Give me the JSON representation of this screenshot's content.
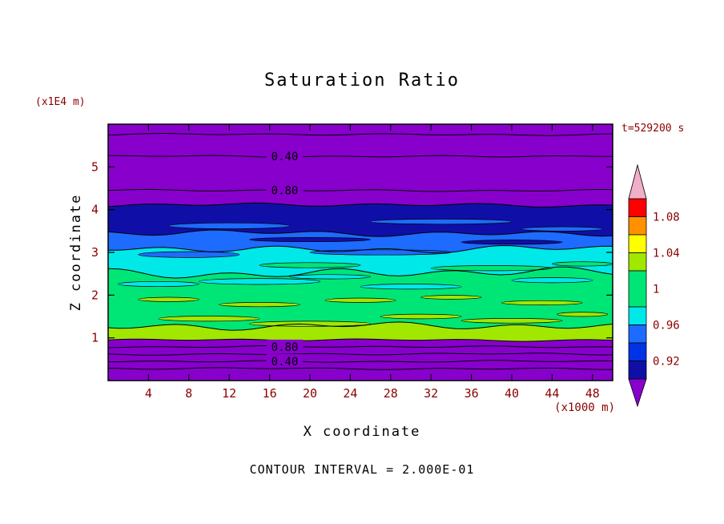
{
  "colors": {
    "background": "#ffffff",
    "accent_text": "#8b0000",
    "line_color": "#000000",
    "undersaturated_purple": "#8800cc",
    "over_pink": "#f0aec8"
  },
  "chart_data": {
    "type": "filled-contour",
    "title": "Saturation Ratio",
    "xlabel": "X coordinate",
    "ylabel": "Z coordinate",
    "x_units": "(x1000 m)",
    "y_units": "(x1E4 m)",
    "time": "t=529200 s",
    "contour_interval": 0.2,
    "contour_interval_label": "CONTOUR INTERVAL = 2.000E-01",
    "xlim": [
      0,
      50
    ],
    "ylim": [
      0,
      6
    ],
    "x_ticks": [
      4,
      8,
      12,
      16,
      20,
      24,
      28,
      32,
      36,
      40,
      44,
      48
    ],
    "y_ticks": [
      1,
      2,
      3,
      4,
      5
    ],
    "grid": false,
    "legend_position": "right-colorbar",
    "contour_label_bg": "#8800cc",
    "boundaries": [
      {
        "z": 6.0,
        "amp": 0,
        "seed": 0
      },
      {
        "z": 4.11,
        "amp": 0.05,
        "seed": 1
      },
      {
        "z": 3.45,
        "amp": 0.08,
        "seed": 2
      },
      {
        "z": 3.08,
        "amp": 0.1,
        "seed": 3
      },
      {
        "z": 2.52,
        "amp": 0.13,
        "seed": 4
      },
      {
        "z": 1.27,
        "amp": 0.1,
        "seed": 5
      },
      {
        "z": 0.95,
        "amp": 0.03,
        "seed": 6
      },
      {
        "z": 0.0,
        "amp": 0,
        "seed": 0
      }
    ],
    "bands": [
      {
        "name": "undersaturated-top",
        "color": "#8800cc",
        "range": [
          0.0,
          0.9
        ]
      },
      {
        "name": "dark-blue",
        "color": "#0f0fa8",
        "range": [
          0.9,
          0.92
        ]
      },
      {
        "name": "blue",
        "color": "#1e6bff",
        "range": [
          0.92,
          0.96
        ]
      },
      {
        "name": "cyan",
        "color": "#00e8e8",
        "range": [
          0.96,
          0.98
        ]
      },
      {
        "name": "green",
        "color": "#00e676",
        "range": [
          0.98,
          1.02
        ]
      },
      {
        "name": "yellow-green",
        "color": "#a2e700",
        "range": [
          1.02,
          1.04
        ]
      },
      {
        "name": "undersaturated-bottom",
        "color": "#8800cc",
        "range": [
          0.0,
          0.9
        ]
      }
    ],
    "contour_lines": [
      {
        "value": 0.2,
        "z": 5.76
      },
      {
        "value": 0.4,
        "z": 5.25,
        "label": "0.40",
        "label_x": 17.5
      },
      {
        "value": 0.8,
        "z": 4.45,
        "label": "0.80",
        "label_x": 17.5
      },
      {
        "value": 0.8,
        "z": 0.79,
        "label": "0.80",
        "label_x": 17.5
      },
      {
        "value": 0.6,
        "z": 0.62
      },
      {
        "value": 0.4,
        "z": 0.45,
        "label": "0.40",
        "label_x": 17.5
      },
      {
        "value": 0.2,
        "z": 0.28
      }
    ],
    "streaks": [
      {
        "x": 12,
        "z": 3.62,
        "rx": 6,
        "rz": 0.07,
        "color": "#1e6bff"
      },
      {
        "x": 33,
        "z": 3.72,
        "rx": 7,
        "rz": 0.06,
        "color": "#1e6bff"
      },
      {
        "x": 45,
        "z": 3.55,
        "rx": 4,
        "rz": 0.05,
        "color": "#1e6bff"
      },
      {
        "x": 20,
        "z": 3.3,
        "rx": 6,
        "rz": 0.05,
        "color": "#0f0fa8"
      },
      {
        "x": 40,
        "z": 3.24,
        "rx": 5,
        "rz": 0.05,
        "color": "#0f0fa8"
      },
      {
        "x": 8,
        "z": 2.95,
        "rx": 5,
        "rz": 0.07,
        "color": "#1e6bff"
      },
      {
        "x": 27,
        "z": 3.0,
        "rx": 7,
        "rz": 0.06,
        "color": "#1e6bff"
      },
      {
        "x": 20,
        "z": 2.7,
        "rx": 5,
        "rz": 0.06,
        "color": "#00e676"
      },
      {
        "x": 38,
        "z": 2.63,
        "rx": 6,
        "rz": 0.06,
        "color": "#00e676"
      },
      {
        "x": 47,
        "z": 2.73,
        "rx": 3,
        "rz": 0.05,
        "color": "#00e676"
      },
      {
        "x": 5,
        "z": 2.26,
        "rx": 4,
        "rz": 0.06,
        "color": "#00e8e8"
      },
      {
        "x": 15,
        "z": 2.32,
        "rx": 6,
        "rz": 0.07,
        "color": "#00e8e8"
      },
      {
        "x": 22,
        "z": 2.43,
        "rx": 4,
        "rz": 0.05,
        "color": "#00e8e8"
      },
      {
        "x": 30,
        "z": 2.2,
        "rx": 5,
        "rz": 0.06,
        "color": "#00e8e8"
      },
      {
        "x": 44,
        "z": 2.35,
        "rx": 4,
        "rz": 0.06,
        "color": "#00e8e8"
      },
      {
        "x": 6,
        "z": 1.9,
        "rx": 3,
        "rz": 0.05,
        "color": "#a2e700"
      },
      {
        "x": 15,
        "z": 1.78,
        "rx": 4,
        "rz": 0.05,
        "color": "#a2e700"
      },
      {
        "x": 25,
        "z": 1.88,
        "rx": 3.5,
        "rz": 0.05,
        "color": "#a2e700"
      },
      {
        "x": 34,
        "z": 1.95,
        "rx": 3,
        "rz": 0.045,
        "color": "#a2e700"
      },
      {
        "x": 43,
        "z": 1.82,
        "rx": 4,
        "rz": 0.05,
        "color": "#a2e700"
      },
      {
        "x": 10,
        "z": 1.45,
        "rx": 5,
        "rz": 0.06,
        "color": "#a2e700"
      },
      {
        "x": 20,
        "z": 1.33,
        "rx": 6,
        "rz": 0.06,
        "color": "#a2e700"
      },
      {
        "x": 31,
        "z": 1.5,
        "rx": 4,
        "rz": 0.055,
        "color": "#a2e700"
      },
      {
        "x": 40,
        "z": 1.4,
        "rx": 5,
        "rz": 0.055,
        "color": "#a2e700"
      },
      {
        "x": 47,
        "z": 1.55,
        "rx": 2.5,
        "rz": 0.05,
        "color": "#a2e700"
      }
    ],
    "colorbar": {
      "vmin": 0.9,
      "vmax": 1.1,
      "labels": [
        {
          "value": 1.08,
          "text": "1.08"
        },
        {
          "value": 1.04,
          "text": "1.04"
        },
        {
          "value": 1.0,
          "text": "1"
        },
        {
          "value": 0.96,
          "text": "0.96"
        },
        {
          "value": 0.92,
          "text": "0.92"
        }
      ],
      "segments": [
        {
          "v0": 1.08,
          "v1": 1.1,
          "color": "#ff0000"
        },
        {
          "v0": 1.06,
          "v1": 1.08,
          "color": "#ff9100"
        },
        {
          "v0": 1.04,
          "v1": 1.06,
          "color": "#ffff00"
        },
        {
          "v0": 1.02,
          "v1": 1.04,
          "color": "#a2e700"
        },
        {
          "v0": 0.98,
          "v1": 1.02,
          "color": "#00e676"
        },
        {
          "v0": 0.96,
          "v1": 0.98,
          "color": "#00e8e8"
        },
        {
          "v0": 0.94,
          "v1": 0.96,
          "color": "#1e6bff"
        },
        {
          "v0": 0.92,
          "v1": 0.94,
          "color": "#0033e6"
        },
        {
          "v0": 0.9,
          "v1": 0.92,
          "color": "#0f0fa8"
        }
      ],
      "over_color": "#f0aec8",
      "under_color": "#8800cc"
    }
  }
}
